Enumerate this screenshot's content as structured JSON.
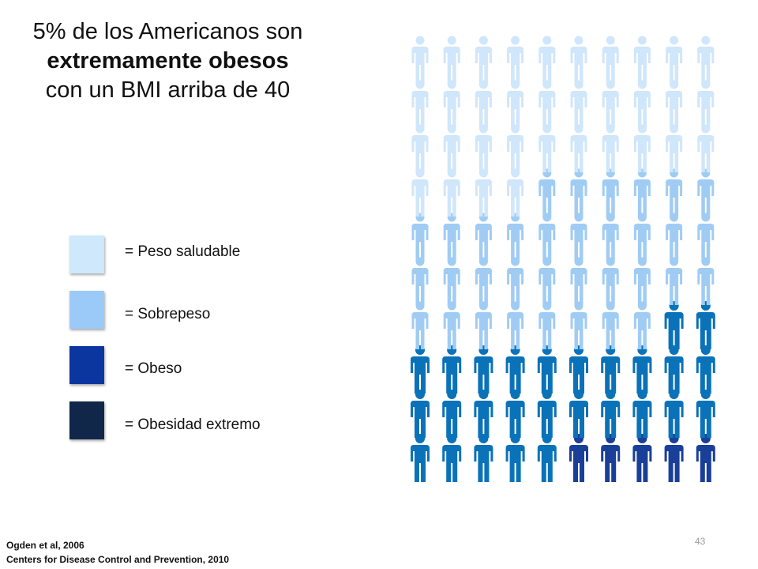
{
  "title": {
    "part1": "5% de los Americanos son ",
    "bold1": "extremamente obesos",
    "part2": " con un BMI arriba de 40"
  },
  "colors": {
    "healthy": "#cfe6fb",
    "overweight": "#a0ccf4",
    "obese": "#0a72b8",
    "extreme": "#1a3f99"
  },
  "legend": [
    {
      "key": "healthy",
      "label": "= Peso saludable",
      "swatch": "#cfe8fb"
    },
    {
      "key": "overweight",
      "label": "= Sobrepeso",
      "swatch": "#9ccaf8"
    },
    {
      "key": "obese",
      "label": "= Obeso",
      "swatch": "#0b36a0"
    },
    {
      "key": "extreme",
      "label": "= Obesidad extremo",
      "swatch": "#10274a"
    }
  ],
  "person_icon": "person-icon",
  "chart_data": {
    "type": "pictogram",
    "total": 100,
    "rows": 10,
    "cols": 10,
    "counts": {
      "healthy": 34,
      "overweight": 34,
      "obese": 27,
      "extreme": 5
    }
  },
  "source": {
    "line1": "Ogden et al, 2006",
    "line2": "Centers for Disease Control and Prevention, 2010"
  },
  "page_number": "43"
}
